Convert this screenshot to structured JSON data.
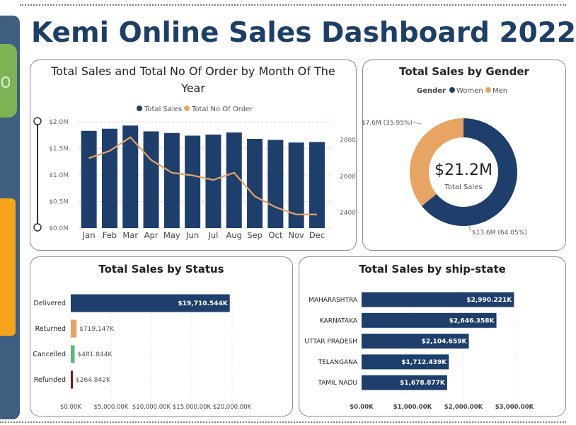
{
  "title": "Kemi Online Sales Dashboard 2022",
  "colors": {
    "navy": "#1e3e6b",
    "orange": "#e8a462",
    "green": "#5fb57c",
    "maroon": "#6b1a1a",
    "sidebar": "#3f5e80"
  },
  "monthly": {
    "title_line1": "Total Sales and Total No Of Order by Month Of The",
    "title_line2": "Year",
    "legend": [
      "Total Sales",
      "Total No Of Order"
    ],
    "y_ticks": [
      "$2.0M",
      "$1.5M",
      "$1.0M",
      "$0.5M",
      "$0.0M"
    ],
    "y2_ticks": [
      "2800",
      "2600",
      "2400"
    ]
  },
  "gender": {
    "title": "Total Sales by Gender",
    "legend_title": "Gender",
    "legend": [
      "Women",
      "Men"
    ],
    "center_value": "$21.2M",
    "center_label": "Total Sales",
    "women_label": "$13.6M (64.05%)",
    "men_label": "$7.6M (35.95%)"
  },
  "status": {
    "title": "Total Sales by Status",
    "x_ticks": [
      "$0.00K",
      "$5,000.00K",
      "$10,000.00K",
      "$15,000.00K",
      "$20,000.00K"
    ],
    "value_labels": [
      "$19,710.544K",
      "$719.147K",
      "$481.844K",
      "$264.842K"
    ]
  },
  "state": {
    "title": "Total Sales by ship-state",
    "x_ticks": [
      "$0.00K",
      "$1,000.00K",
      "$2,000.00K",
      "$3,000.00K"
    ],
    "value_labels": [
      "$2,990.221K",
      "$2,646.358K",
      "$2,104.659K",
      "$1,712.439K",
      "$1,678.877K"
    ]
  },
  "chart_data": [
    {
      "type": "bar",
      "title": "Total Sales and Total No Of Order by Month Of The Year",
      "categories": [
        "Jan",
        "Feb",
        "Mar",
        "Apr",
        "May",
        "Jun",
        "Jul",
        "Aug",
        "Sep",
        "Oct",
        "Nov",
        "Dec"
      ],
      "series": [
        {
          "name": "Total Sales",
          "type": "bar",
          "axis": "left",
          "values": [
            1.83,
            1.87,
            1.93,
            1.82,
            1.79,
            1.74,
            1.76,
            1.8,
            1.68,
            1.66,
            1.61,
            1.62
          ]
        },
        {
          "name": "Total No Of Order",
          "type": "line",
          "axis": "right",
          "values": [
            2700,
            2740,
            2815,
            2690,
            2620,
            2605,
            2580,
            2620,
            2490,
            2430,
            2390,
            2390
          ]
        }
      ],
      "ylim": [
        0,
        2.0
      ],
      "y2lim": [
        2315,
        2900
      ]
    },
    {
      "type": "pie",
      "title": "Total Sales by Gender",
      "categories": [
        "Women",
        "Men"
      ],
      "values": [
        13.6,
        7.6
      ],
      "percentages": [
        64.05,
        35.95
      ],
      "total": 21.2
    },
    {
      "type": "bar",
      "title": "Total Sales by Status",
      "categories": [
        "Delivered",
        "Returned",
        "Cancelled",
        "Refunded"
      ],
      "values": [
        19710.544,
        719.147,
        481.844,
        264.842
      ],
      "xlim": [
        0,
        20000
      ]
    },
    {
      "type": "bar",
      "title": "Total Sales by ship-state",
      "categories": [
        "MAHARASHTRA",
        "KARNATAKA",
        "UTTAR PRADESH",
        "TELANGANA",
        "TAMIL NADU"
      ],
      "values": [
        2990.221,
        2646.358,
        2104.659,
        1712.439,
        1678.877
      ],
      "xlim": [
        0,
        3000
      ]
    }
  ]
}
